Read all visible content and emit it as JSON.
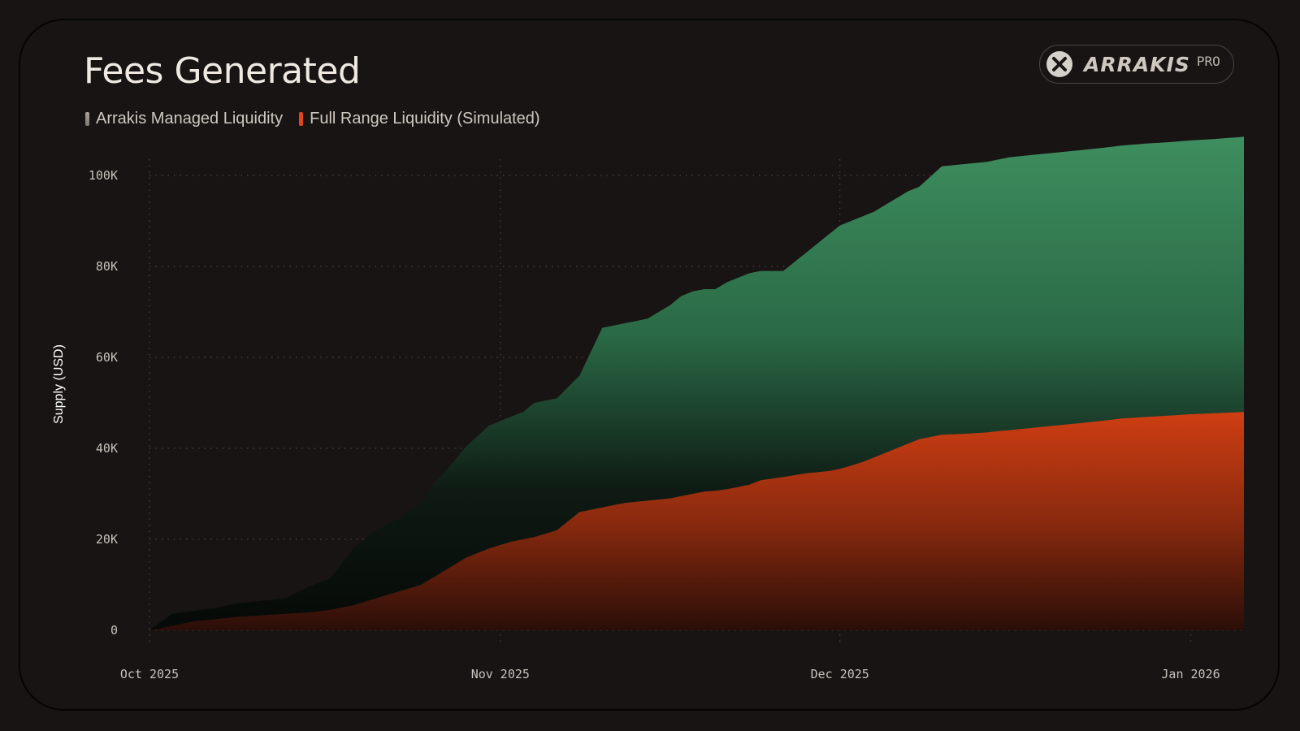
{
  "title": "Fees Generated",
  "legend": {
    "managed_label": "Arrakis Managed Liquidity",
    "fullrange_label": "Full Range Liquidity (Simulated)"
  },
  "logo": {
    "icon": "arrakis-x-logo-icon",
    "wordmark": "ARRAKIS",
    "tag": "PRO"
  },
  "colors": {
    "background": "#171413",
    "managed": "#3d8a5c",
    "fullrange": "#cc3b12",
    "grid": "#4a4541"
  },
  "chart_data": {
    "type": "area",
    "title": "Fees Generated",
    "ylabel": "Supply (USD)",
    "xlabel": "",
    "ylim": [
      0,
      100000
    ],
    "grid": true,
    "legend_position": "top-left",
    "x_ticks": [
      {
        "day": 0,
        "label": "Oct 2025"
      },
      {
        "day": 31,
        "label": "Nov 2025"
      },
      {
        "day": 61,
        "label": "Dec 2025"
      },
      {
        "day": 92,
        "label": "Jan 2026"
      }
    ],
    "y_ticks": [
      {
        "value": 0,
        "label": "0"
      },
      {
        "value": 20000,
        "label": "20K"
      },
      {
        "value": 40000,
        "label": "40K"
      },
      {
        "value": 60000,
        "label": "60K"
      },
      {
        "value": 80000,
        "label": "80K"
      },
      {
        "value": 100000,
        "label": "100K"
      }
    ],
    "series": [
      {
        "name": "Arrakis Managed Liquidity",
        "color": "#3d8a5c",
        "x": [
          0,
          2,
          4,
          6,
          8,
          10,
          12,
          14,
          16,
          18,
          20,
          22,
          24,
          25,
          26,
          28,
          30,
          32,
          33,
          34,
          36,
          38,
          40,
          42,
          44,
          46,
          47,
          48,
          49,
          50,
          51,
          52,
          53,
          54,
          56,
          58,
          60,
          61,
          62,
          63,
          64,
          65,
          66,
          67,
          68,
          70,
          72,
          74,
          75,
          76,
          78,
          80,
          82,
          84,
          85,
          86,
          88,
          90,
          92,
          94,
          95,
          96.7
        ],
        "values": [
          0,
          3600,
          4300,
          5000,
          6000,
          6500,
          7000,
          9500,
          11500,
          18000,
          22000,
          24500,
          28000,
          32000,
          34500,
          40500,
          45000,
          47000,
          48000,
          50000,
          51000,
          56000,
          66500,
          67500,
          68500,
          71500,
          73500,
          74500,
          75000,
          75000,
          76500,
          77500,
          78500,
          79000,
          79000,
          83000,
          87000,
          89000,
          90000,
          91000,
          92000,
          93500,
          95000,
          96500,
          97500,
          102000,
          102500,
          103000,
          103500,
          104000,
          104500,
          105000,
          105500,
          106000,
          106300,
          106600,
          107000,
          107300,
          107700,
          108000,
          108200,
          108500
        ]
      },
      {
        "name": "Full Range Liquidity (Simulated)",
        "color": "#cc3b12",
        "x": [
          0,
          2,
          4,
          6,
          8,
          10,
          12,
          14,
          16,
          18,
          20,
          22,
          24,
          25,
          26,
          28,
          30,
          32,
          33,
          34,
          36,
          38,
          40,
          42,
          44,
          46,
          47,
          48,
          49,
          50,
          51,
          52,
          53,
          54,
          56,
          58,
          60,
          61,
          62,
          63,
          64,
          65,
          66,
          67,
          68,
          70,
          72,
          74,
          75,
          76,
          78,
          80,
          82,
          84,
          85,
          86,
          88,
          90,
          92,
          94,
          95,
          96.7
        ],
        "values": [
          0,
          1000,
          2000,
          2500,
          3000,
          3300,
          3600,
          3900,
          4500,
          5500,
          7000,
          8500,
          10000,
          11500,
          13000,
          16000,
          18000,
          19500,
          20000,
          20500,
          22000,
          26000,
          27000,
          28000,
          28500,
          29000,
          29500,
          30000,
          30500,
          30700,
          31000,
          31500,
          32000,
          33000,
          33700,
          34500,
          35000,
          35500,
          36200,
          37000,
          38000,
          39000,
          40000,
          41000,
          42000,
          43000,
          43200,
          43500,
          43800,
          44000,
          44500,
          45000,
          45500,
          46000,
          46300,
          46600,
          46900,
          47200,
          47500,
          47700,
          47800,
          48000
        ]
      }
    ]
  }
}
